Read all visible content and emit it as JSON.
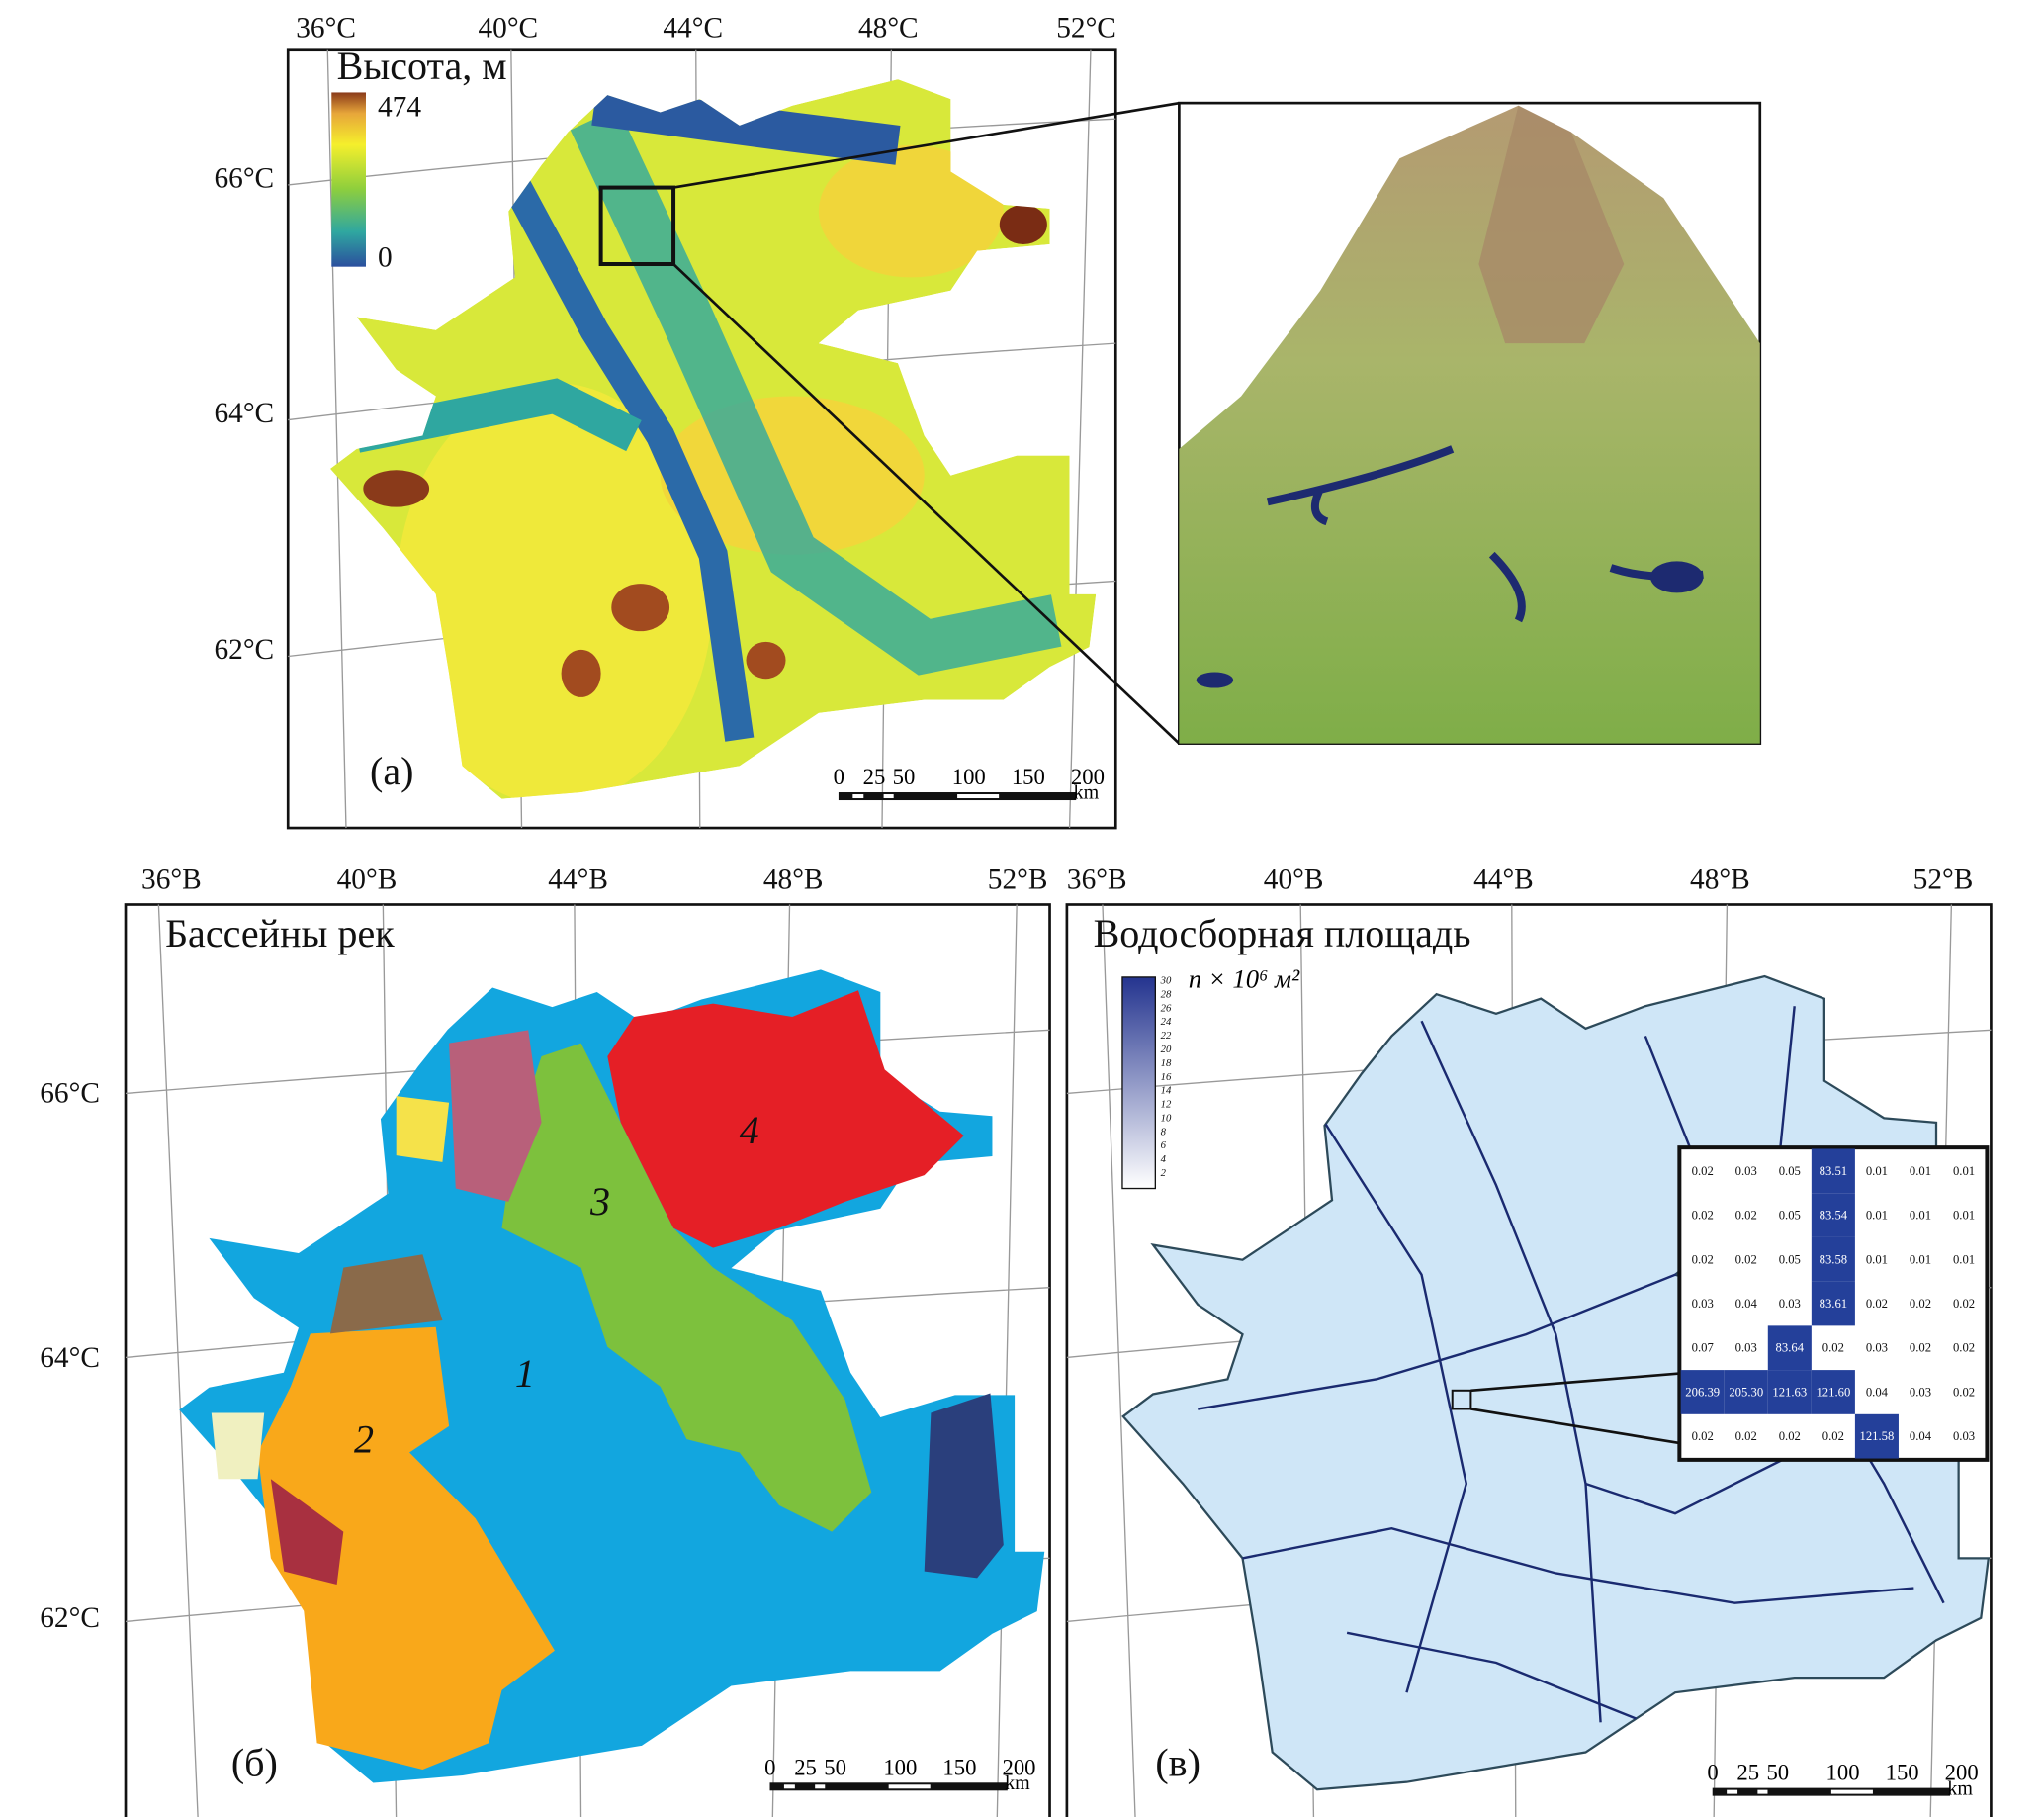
{
  "panel_a": {
    "legend_title": "Высота, м",
    "legend_max": "474",
    "legend_min": "0",
    "legend_colors": [
      "#2b4f9e",
      "#2fa7a0",
      "#8fcf3c",
      "#f5ef2c",
      "#e7a63a",
      "#8a3a1a"
    ],
    "panel_label": "(a)",
    "lon_labels": [
      "36°C",
      "40°C",
      "44°C",
      "48°C",
      "52°C"
    ],
    "lat_labels": [
      "66°C",
      "64°C",
      "62°C"
    ],
    "scale_labels": [
      "0",
      "25",
      "50",
      "100",
      "150",
      "200"
    ],
    "scale_unit": "km"
  },
  "panel_b": {
    "title": "Бассейны рек",
    "panel_label": "(б)",
    "lon_labels": [
      "36°B",
      "40°B",
      "44°B",
      "48°B",
      "52°B"
    ],
    "lat_labels": [
      "66°C",
      "64°C",
      "62°C"
    ],
    "basins": [
      {
        "label": "1",
        "color": "#12a6df"
      },
      {
        "label": "2",
        "color": "#f9a81a"
      },
      {
        "label": "3",
        "color": "#7dc13d"
      },
      {
        "label": "4",
        "color": "#e51f26"
      }
    ],
    "scale_labels": [
      "0",
      "25",
      "50",
      "100",
      "150",
      "200"
    ],
    "scale_unit": "km"
  },
  "panel_c": {
    "title": "Водосборная площадь",
    "legend_unit": "n × 10⁶ м²",
    "legend_ticks": [
      "30",
      "28",
      "26",
      "24",
      "22",
      "20",
      "18",
      "16",
      "14",
      "12",
      "10",
      "8",
      "6",
      "4",
      "2"
    ],
    "legend_colors": [
      "#24348f",
      "#ffffff"
    ],
    "panel_label": "(в)",
    "lon_labels": [
      "36°B",
      "40°B",
      "44°B",
      "48°B",
      "52°B"
    ],
    "lat_labels": [
      "66°C",
      "64°C",
      "62°C"
    ],
    "inset_table": [
      [
        "0.02",
        "0.03",
        "0.05",
        "83.51",
        "0.01",
        "0.01",
        "0.01"
      ],
      [
        "0.02",
        "0.02",
        "0.05",
        "83.54",
        "0.01",
        "0.01",
        "0.01"
      ],
      [
        "0.02",
        "0.02",
        "0.05",
        "83.58",
        "0.01",
        "0.01",
        "0.01"
      ],
      [
        "0.03",
        "0.04",
        "0.03",
        "83.61",
        "0.02",
        "0.02",
        "0.02"
      ],
      [
        "0.07",
        "0.03",
        "83.64",
        "0.02",
        "0.03",
        "0.02",
        "0.02"
      ],
      [
        "206.39",
        "205.30",
        "121.63",
        "121.60",
        "0.04",
        "0.03",
        "0.02"
      ],
      [
        "0.02",
        "0.02",
        "0.02",
        "0.02",
        "121.58",
        "0.04",
        "0.03"
      ]
    ],
    "highlight_color": "#24409a",
    "scale_labels": [
      "0",
      "25",
      "50",
      "100",
      "150",
      "200"
    ],
    "scale_unit": "km"
  }
}
